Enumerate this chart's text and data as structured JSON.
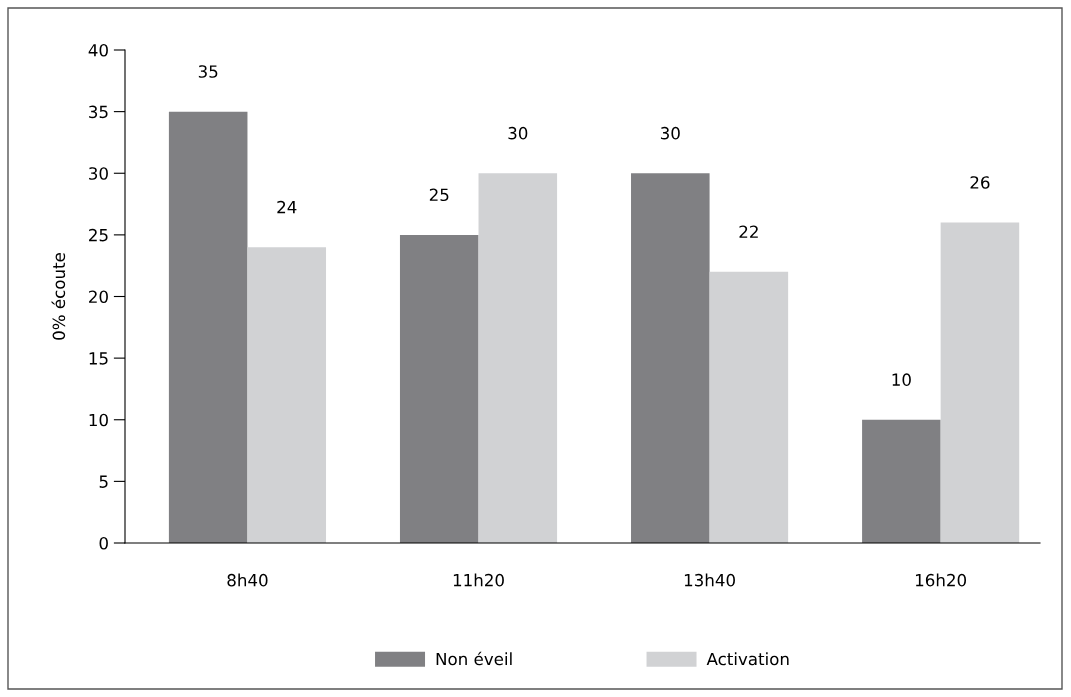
{
  "chart_data": {
    "type": "bar",
    "ylabel": "0% écoute",
    "categories": [
      "8h40",
      "11h20",
      "13h40",
      "16h20"
    ],
    "series": [
      {
        "name": "Non éveil",
        "color": "#808083",
        "values": [
          35,
          25,
          30,
          10
        ]
      },
      {
        "name": "Activation",
        "color": "#d1d2d4",
        "values": [
          24,
          30,
          22,
          26
        ]
      }
    ],
    "ylim": [
      0,
      40
    ],
    "yticks": [
      0,
      5,
      10,
      15,
      20,
      25,
      30,
      35,
      40
    ],
    "data_labels": true,
    "legend": "bottom",
    "grid": false
  }
}
